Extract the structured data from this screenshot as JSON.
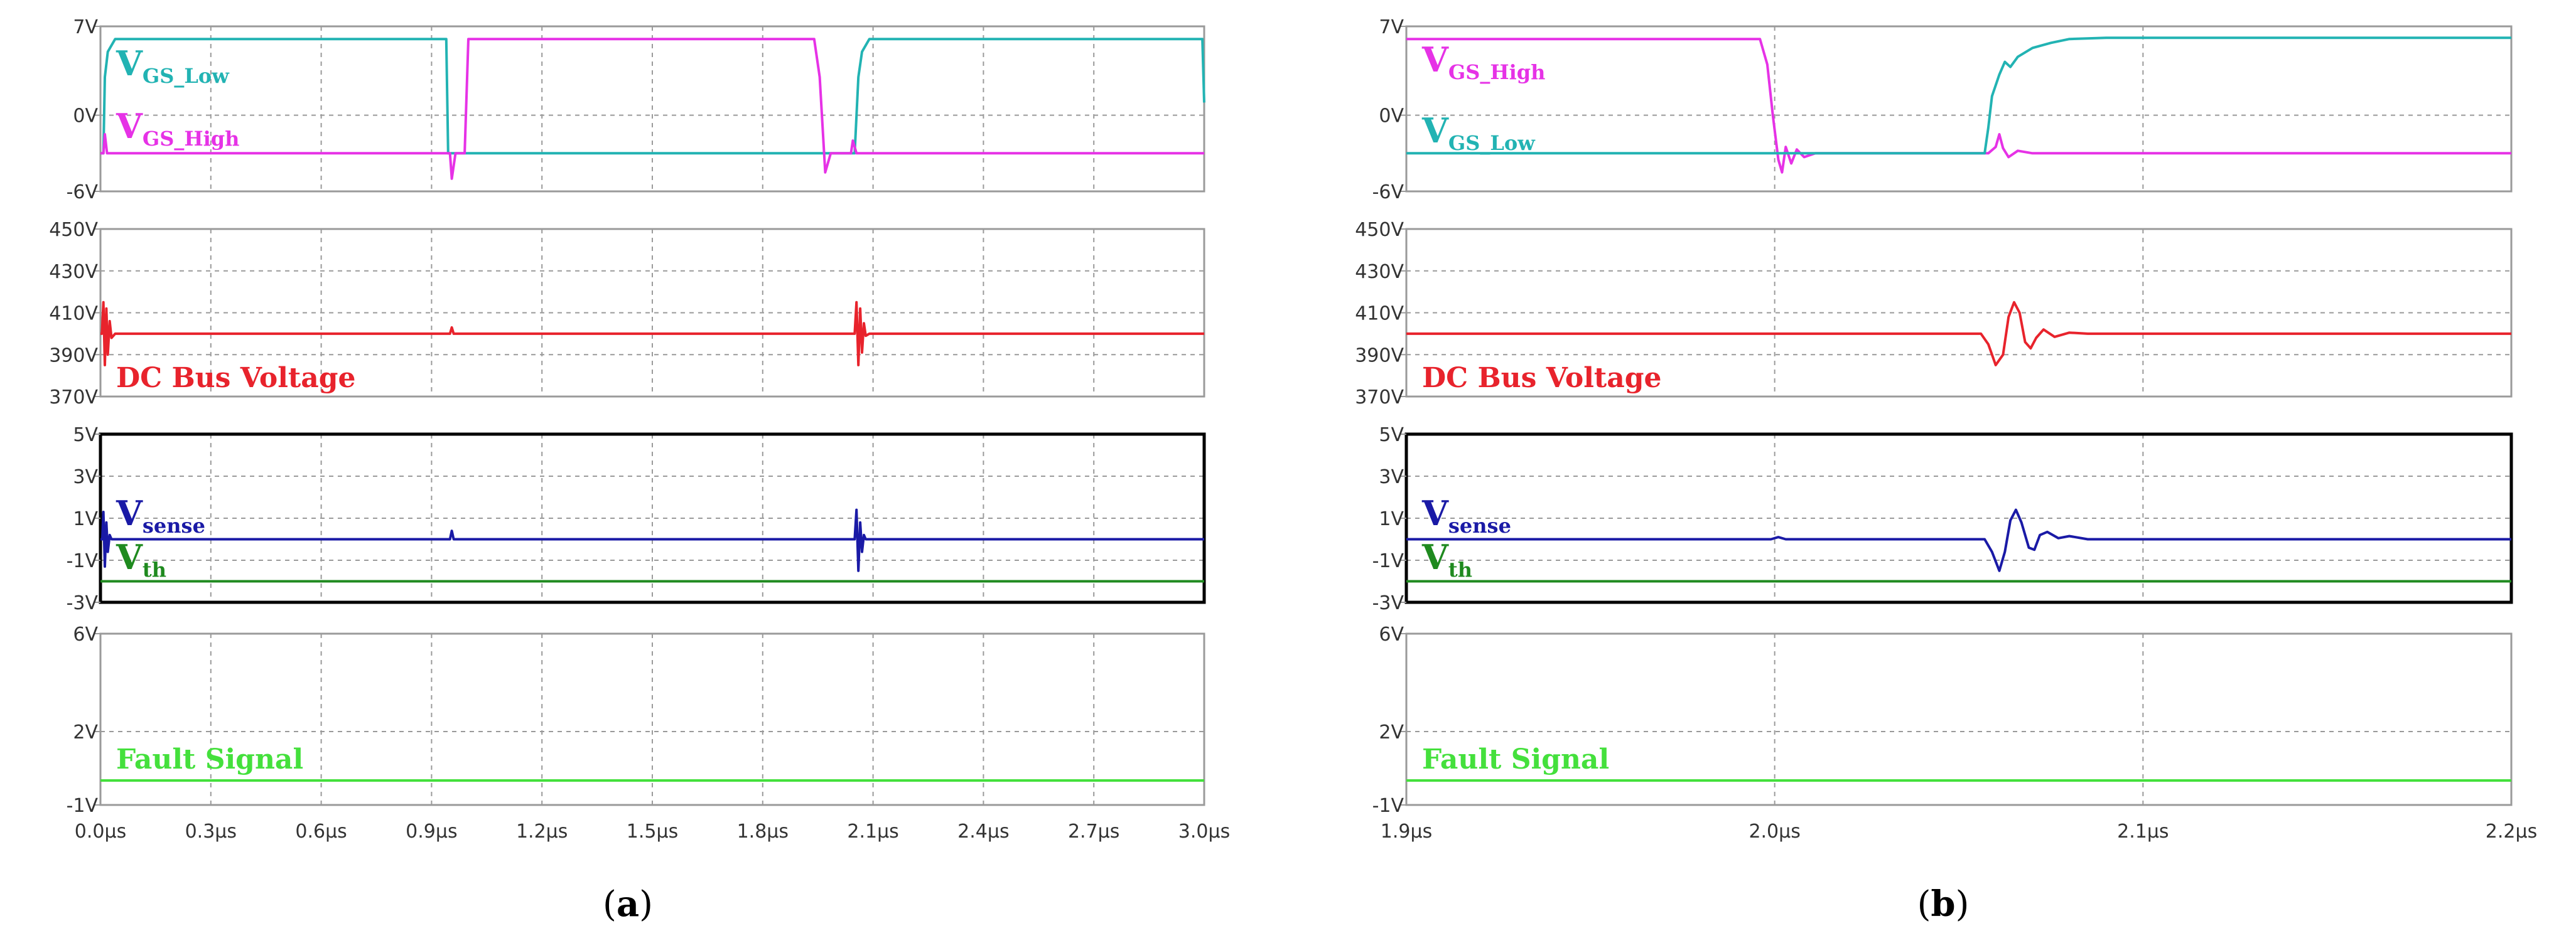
{
  "colors": {
    "vgs_low": "#22b3b3",
    "vgs_high": "#e632e6",
    "dc_bus": "#e8232c",
    "vsense": "#1a1aa6",
    "vth": "#1f8a1f",
    "fault": "#44e03c",
    "grid": "#9a9a9a",
    "frame": "#9a9a9a",
    "frame_active": "#000000"
  },
  "chart_data": [
    {
      "type": "line",
      "caption": "(a)",
      "x_unit": "µs",
      "xlim": [
        0.0,
        3.0
      ],
      "x_ticks": [
        0.0,
        0.3,
        0.6,
        0.9,
        1.2,
        1.5,
        1.8,
        2.1,
        2.4,
        2.7,
        3.0
      ],
      "x_tick_labels": [
        "0.0µs",
        "0.3µs",
        "0.6µs",
        "0.9µs",
        "1.2µs",
        "1.5µs",
        "1.8µs",
        "2.1µs",
        "2.4µs",
        "2.7µs",
        "3.0µs"
      ],
      "panels": [
        {
          "id": "gate",
          "ylim": [
            -6,
            7
          ],
          "y_ticks": [
            7,
            0,
            -6
          ],
          "y_tick_labels": [
            "7V",
            "0V",
            "-6V"
          ],
          "labels": [
            {
              "main": "V",
              "sub": "GS_Low",
              "color_key": "vgs_low"
            },
            {
              "main": "V",
              "sub": "GS_High",
              "color_key": "vgs_high"
            }
          ],
          "series": [
            {
              "key": "vgs_low",
              "points": [
                [
                  0,
                  -3
                ],
                [
                  0.008,
                  -3
                ],
                [
                  0.012,
                  3
                ],
                [
                  0.02,
                  5
                ],
                [
                  0.04,
                  6
                ],
                [
                  0.94,
                  6
                ],
                [
                  0.945,
                  -3
                ],
                [
                  0.96,
                  -3
                ],
                [
                  1.99,
                  -3
                ],
                [
                  2.0,
                  -3
                ],
                [
                  2.01,
                  -3
                ],
                [
                  2.05,
                  -3
                ],
                [
                  2.06,
                  3
                ],
                [
                  2.07,
                  5
                ],
                [
                  2.09,
                  6
                ],
                [
                  2.995,
                  6
                ],
                [
                  3.0,
                  1
                ]
              ]
            },
            {
              "key": "vgs_high",
              "points": [
                [
                  0,
                  -3
                ],
                [
                  0.008,
                  -3
                ],
                [
                  0.012,
                  -1.5
                ],
                [
                  0.018,
                  -3
                ],
                [
                  0.94,
                  -3
                ],
                [
                  0.95,
                  -3
                ],
                [
                  0.955,
                  -5
                ],
                [
                  0.965,
                  -3
                ],
                [
                  0.97,
                  -3
                ],
                [
                  0.99,
                  -3
                ],
                [
                  1.0,
                  6
                ],
                [
                  1.94,
                  6
                ],
                [
                  1.955,
                  3
                ],
                [
                  1.97,
                  -4.5
                ],
                [
                  1.985,
                  -3
                ],
                [
                  2.04,
                  -3
                ],
                [
                  2.045,
                  -2
                ],
                [
                  2.055,
                  -3
                ],
                [
                  3.0,
                  -3
                ]
              ]
            }
          ]
        },
        {
          "id": "bus",
          "ylim": [
            370,
            450
          ],
          "y_ticks": [
            450,
            430,
            410,
            390,
            370
          ],
          "y_tick_labels": [
            "450V",
            "430V",
            "410V",
            "390V",
            "370V"
          ],
          "labels": [
            {
              "main": "DC Bus Voltage",
              "color_key": "dc_bus"
            }
          ],
          "series": [
            {
              "key": "dc_bus",
              "points": [
                [
                  0,
                  400
                ],
                [
                  0.004,
                  400
                ],
                [
                  0.008,
                  415
                ],
                [
                  0.012,
                  385
                ],
                [
                  0.016,
                  412
                ],
                [
                  0.02,
                  390
                ],
                [
                  0.025,
                  406
                ],
                [
                  0.03,
                  398
                ],
                [
                  0.04,
                  400
                ],
                [
                  0.95,
                  400
                ],
                [
                  0.955,
                  403
                ],
                [
                  0.96,
                  400
                ],
                [
                  2.05,
                  400
                ],
                [
                  2.055,
                  415
                ],
                [
                  2.06,
                  385
                ],
                [
                  2.065,
                  412
                ],
                [
                  2.07,
                  391
                ],
                [
                  2.075,
                  405
                ],
                [
                  2.08,
                  399
                ],
                [
                  2.09,
                  400
                ],
                [
                  3.0,
                  400
                ]
              ]
            }
          ]
        },
        {
          "id": "sense",
          "ylim": [
            -3,
            5
          ],
          "y_ticks": [
            5,
            3,
            1,
            -1,
            -3
          ],
          "y_tick_labels": [
            "5V",
            "3V",
            "1V",
            "-1V",
            "-3V"
          ],
          "labels": [
            {
              "main": "V",
              "sub": "sense",
              "color_key": "vsense"
            },
            {
              "main": "V",
              "sub": "th",
              "color_key": "vth"
            }
          ],
          "series": [
            {
              "key": "vsense",
              "points": [
                [
                  0,
                  0
                ],
                [
                  0.005,
                  0
                ],
                [
                  0.008,
                  1.3
                ],
                [
                  0.012,
                  -1.3
                ],
                [
                  0.016,
                  0.8
                ],
                [
                  0.02,
                  -0.6
                ],
                [
                  0.025,
                  0.2
                ],
                [
                  0.03,
                  0
                ],
                [
                  0.95,
                  0
                ],
                [
                  0.955,
                  0.4
                ],
                [
                  0.96,
                  0
                ],
                [
                  2.05,
                  0
                ],
                [
                  2.055,
                  1.4
                ],
                [
                  2.06,
                  -1.5
                ],
                [
                  2.065,
                  0.8
                ],
                [
                  2.07,
                  -0.6
                ],
                [
                  2.075,
                  0.2
                ],
                [
                  2.08,
                  0
                ],
                [
                  3.0,
                  0
                ]
              ]
            },
            {
              "key": "vth",
              "points": [
                [
                  0,
                  -2
                ],
                [
                  3.0,
                  -2
                ]
              ]
            }
          ]
        },
        {
          "id": "fault",
          "ylim": [
            -1,
            6
          ],
          "y_ticks": [
            6,
            2,
            -1
          ],
          "y_tick_labels": [
            "6V",
            "2V",
            "-1V"
          ],
          "labels": [
            {
              "main": "Fault Signal",
              "color_key": "fault"
            }
          ],
          "series": [
            {
              "key": "fault",
              "points": [
                [
                  0,
                  0
                ],
                [
                  3.0,
                  0
                ]
              ]
            }
          ]
        }
      ]
    },
    {
      "type": "line",
      "caption": "(b)",
      "x_unit": "µs",
      "xlim": [
        1.9,
        2.2
      ],
      "x_ticks": [
        1.9,
        2.0,
        2.1,
        2.2
      ],
      "x_tick_labels": [
        "1.9µs",
        "2.0µs",
        "2.1µs",
        "2.2µs"
      ],
      "panels": [
        {
          "id": "gate",
          "ylim": [
            -6,
            7
          ],
          "y_ticks": [
            7,
            0,
            -6
          ],
          "y_tick_labels": [
            "7V",
            "0V",
            "-6V"
          ],
          "labels": [
            {
              "main": "V",
              "sub": "GS_High",
              "color_key": "vgs_high"
            },
            {
              "main": "V",
              "sub": "GS_Low",
              "color_key": "vgs_low"
            }
          ],
          "series": [
            {
              "key": "vgs_high",
              "points": [
                [
                  1.9,
                  6
                ],
                [
                  1.996,
                  6
                ],
                [
                  1.998,
                  4
                ],
                [
                  1.9995,
                  0
                ],
                [
                  2.001,
                  -3.5
                ],
                [
                  2.002,
                  -4.5
                ],
                [
                  2.003,
                  -2.5
                ],
                [
                  2.0045,
                  -3.8
                ],
                [
                  2.006,
                  -2.7
                ],
                [
                  2.008,
                  -3.3
                ],
                [
                  2.011,
                  -3
                ],
                [
                  2.058,
                  -3
                ],
                [
                  2.06,
                  -2.5
                ],
                [
                  2.061,
                  -1.5
                ],
                [
                  2.062,
                  -2.6
                ],
                [
                  2.0635,
                  -3.3
                ],
                [
                  2.066,
                  -2.8
                ],
                [
                  2.07,
                  -3
                ],
                [
                  2.2,
                  -3
                ]
              ]
            },
            {
              "key": "vgs_low",
              "points": [
                [
                  1.9,
                  -3
                ],
                [
                  2.057,
                  -3
                ],
                [
                  2.058,
                  -1
                ],
                [
                  2.059,
                  1.5
                ],
                [
                  2.061,
                  3.2
                ],
                [
                  2.0625,
                  4.2
                ],
                [
                  2.064,
                  3.8
                ],
                [
                  2.066,
                  4.6
                ],
                [
                  2.07,
                  5.3
                ],
                [
                  2.075,
                  5.7
                ],
                [
                  2.08,
                  6
                ],
                [
                  2.09,
                  6.1
                ],
                [
                  2.1,
                  6.1
                ],
                [
                  2.2,
                  6.1
                ]
              ]
            }
          ]
        },
        {
          "id": "bus",
          "ylim": [
            370,
            450
          ],
          "y_ticks": [
            450,
            430,
            410,
            390,
            370
          ],
          "y_tick_labels": [
            "450V",
            "430V",
            "410V",
            "390V",
            "370V"
          ],
          "labels": [
            {
              "main": "DC Bus Voltage",
              "color_key": "dc_bus"
            }
          ],
          "series": [
            {
              "key": "dc_bus",
              "points": [
                [
                  1.9,
                  400
                ],
                [
                  2.056,
                  400
                ],
                [
                  2.058,
                  395
                ],
                [
                  2.06,
                  385
                ],
                [
                  2.062,
                  390
                ],
                [
                  2.0635,
                  408
                ],
                [
                  2.065,
                  415
                ],
                [
                  2.0665,
                  410
                ],
                [
                  2.068,
                  396
                ],
                [
                  2.0695,
                  393
                ],
                [
                  2.071,
                  398
                ],
                [
                  2.073,
                  402
                ],
                [
                  2.076,
                  398.5
                ],
                [
                  2.08,
                  400.5
                ],
                [
                  2.085,
                  400
                ],
                [
                  2.2,
                  400
                ]
              ]
            }
          ]
        },
        {
          "id": "sense",
          "ylim": [
            -3,
            5
          ],
          "y_ticks": [
            5,
            3,
            1,
            -1,
            -3
          ],
          "y_tick_labels": [
            "5V",
            "3V",
            "1V",
            "-1V",
            "-3V"
          ],
          "labels": [
            {
              "main": "V",
              "sub": "sense",
              "color_key": "vsense"
            },
            {
              "main": "V",
              "sub": "th",
              "color_key": "vth"
            }
          ],
          "series": [
            {
              "key": "vsense",
              "points": [
                [
                  1.9,
                  0
                ],
                [
                  1.999,
                  0
                ],
                [
                  2.001,
                  0.1
                ],
                [
                  2.003,
                  0
                ],
                [
                  2.057,
                  0
                ],
                [
                  2.059,
                  -0.6
                ],
                [
                  2.061,
                  -1.5
                ],
                [
                  2.0625,
                  -0.6
                ],
                [
                  2.064,
                  0.9
                ],
                [
                  2.0655,
                  1.4
                ],
                [
                  2.067,
                  0.8
                ],
                [
                  2.069,
                  -0.4
                ],
                [
                  2.0705,
                  -0.5
                ],
                [
                  2.072,
                  0.2
                ],
                [
                  2.074,
                  0.35
                ],
                [
                  2.077,
                  0.05
                ],
                [
                  2.08,
                  0.15
                ],
                [
                  2.085,
                  0
                ],
                [
                  2.2,
                  0
                ]
              ]
            },
            {
              "key": "vth",
              "points": [
                [
                  1.9,
                  -2
                ],
                [
                  2.2,
                  -2
                ]
              ]
            }
          ]
        },
        {
          "id": "fault",
          "ylim": [
            -1,
            6
          ],
          "y_ticks": [
            6,
            2,
            -1
          ],
          "y_tick_labels": [
            "6V",
            "2V",
            "-1V"
          ],
          "labels": [
            {
              "main": "Fault Signal",
              "color_key": "fault"
            }
          ],
          "series": [
            {
              "key": "fault",
              "points": [
                [
                  1.9,
                  0
                ],
                [
                  2.2,
                  0
                ]
              ]
            }
          ]
        }
      ]
    }
  ]
}
